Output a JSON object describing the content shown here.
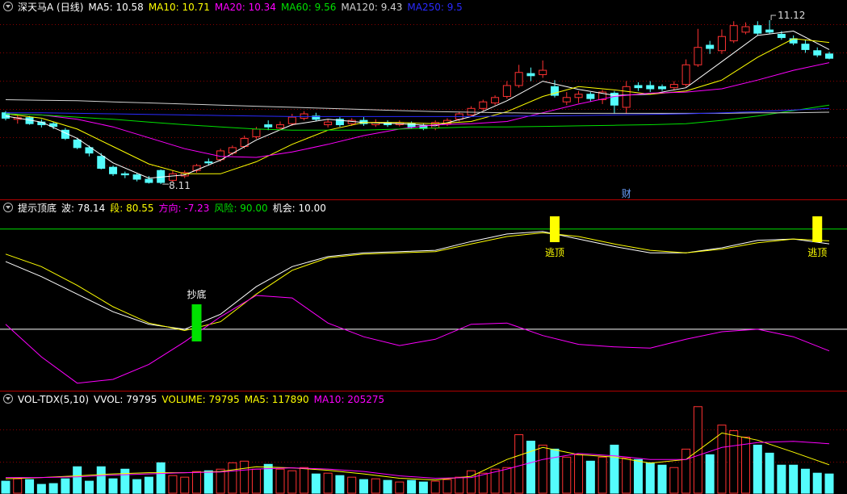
{
  "chart_data": [
    {
      "type": "candlestick",
      "title": "深天马A (日线)",
      "ylim": [
        7.83,
        11.49
      ],
      "up_color": "#ff3232",
      "down_color": "#54fcfc",
      "open": [
        9.42,
        9.3,
        9.33,
        9.25,
        9.22,
        9.1,
        8.92,
        8.78,
        8.62,
        8.42,
        8.3,
        8.28,
        8.2,
        8.36,
        8.18,
        8.26,
        8.36,
        8.52,
        8.56,
        8.68,
        8.8,
        8.98,
        9.2,
        9.14,
        9.22,
        9.32,
        9.36,
        9.2,
        9.3,
        9.22,
        9.28,
        9.2,
        9.24,
        9.2,
        9.22,
        9.18,
        9.14,
        9.22,
        9.3,
        9.38,
        9.5,
        9.6,
        9.72,
        9.92,
        10.14,
        10.12,
        9.9,
        9.62,
        9.7,
        9.76,
        9.66,
        9.78,
        9.52,
        9.92,
        9.92,
        9.9,
        9.88,
        9.94,
        10.3,
        10.66,
        10.56,
        10.74,
        10.9,
        11.02,
        10.94,
        10.86,
        10.78,
        10.68,
        10.56,
        10.5
      ],
      "high": [
        9.45,
        9.38,
        9.36,
        9.3,
        9.26,
        9.14,
        8.96,
        8.82,
        8.68,
        8.45,
        8.34,
        8.31,
        8.26,
        8.38,
        8.36,
        8.36,
        8.48,
        8.58,
        8.76,
        8.82,
        9.0,
        9.16,
        9.28,
        9.26,
        9.4,
        9.45,
        9.42,
        9.3,
        9.34,
        9.32,
        9.34,
        9.3,
        9.28,
        9.28,
        9.26,
        9.22,
        9.28,
        9.32,
        9.44,
        9.54,
        9.66,
        9.74,
        10.0,
        10.3,
        10.25,
        10.38,
        10.02,
        9.8,
        9.82,
        9.8,
        9.84,
        9.82,
        10.0,
        9.98,
        10.0,
        9.94,
        10.0,
        10.4,
        10.96,
        10.74,
        10.95,
        11.1,
        11.08,
        11.1,
        11.12,
        10.92,
        10.84,
        10.76,
        10.62,
        10.54
      ],
      "low": [
        9.28,
        9.22,
        9.2,
        9.15,
        9.12,
        8.92,
        8.75,
        8.62,
        8.38,
        8.26,
        8.22,
        8.16,
        8.12,
        8.11,
        8.14,
        8.22,
        8.32,
        8.45,
        8.52,
        8.64,
        8.76,
        8.94,
        9.1,
        9.1,
        9.18,
        9.28,
        9.26,
        9.15,
        9.16,
        9.18,
        9.18,
        9.16,
        9.16,
        9.17,
        9.12,
        9.1,
        9.1,
        9.18,
        9.26,
        9.34,
        9.46,
        9.56,
        9.68,
        9.88,
        10.0,
        10.06,
        9.7,
        9.56,
        9.6,
        9.62,
        9.58,
        9.4,
        9.4,
        9.82,
        9.8,
        9.82,
        9.84,
        9.9,
        10.26,
        10.5,
        10.5,
        10.7,
        10.86,
        10.84,
        10.86,
        10.76,
        10.66,
        10.52,
        10.44,
        10.4
      ],
      "close": [
        9.32,
        9.33,
        9.22,
        9.2,
        9.17,
        8.95,
        8.78,
        8.68,
        8.4,
        8.3,
        8.28,
        8.2,
        8.14,
        8.14,
        8.3,
        8.32,
        8.45,
        8.5,
        8.72,
        8.78,
        8.95,
        9.12,
        9.16,
        9.2,
        9.34,
        9.4,
        9.3,
        9.25,
        9.2,
        9.28,
        9.22,
        9.24,
        9.2,
        9.24,
        9.16,
        9.13,
        9.24,
        9.28,
        9.4,
        9.5,
        9.62,
        9.7,
        9.92,
        10.16,
        10.1,
        10.2,
        9.74,
        9.7,
        9.76,
        9.68,
        9.8,
        9.56,
        9.9,
        9.88,
        9.86,
        9.86,
        9.94,
        10.3,
        10.62,
        10.6,
        10.82,
        11.02,
        11.0,
        10.88,
        10.9,
        10.8,
        10.7,
        10.58,
        10.48,
        10.42
      ],
      "line_index": [
        0,
        3,
        6,
        9,
        12,
        15,
        18,
        21,
        24,
        27,
        30,
        33,
        36,
        39,
        42,
        45,
        48,
        51,
        54,
        57,
        60,
        63,
        66,
        69
      ],
      "series": [
        {
          "name": "MA5",
          "color": "#ffffff",
          "values": [
            9.36,
            9.25,
            8.95,
            8.5,
            8.22,
            8.28,
            8.55,
            8.92,
            9.2,
            9.3,
            9.24,
            9.22,
            9.18,
            9.35,
            9.64,
            10.0,
            9.85,
            9.74,
            9.76,
            9.88,
            10.36,
            10.84,
            10.92,
            10.58
          ]
        },
        {
          "name": "MA10",
          "color": "#ffff00",
          "values": [
            9.4,
            9.32,
            9.12,
            8.8,
            8.48,
            8.3,
            8.3,
            8.52,
            8.84,
            9.1,
            9.24,
            9.24,
            9.22,
            9.26,
            9.44,
            9.72,
            9.9,
            9.84,
            9.76,
            9.82,
            10.02,
            10.44,
            10.78,
            10.71
          ]
        },
        {
          "name": "MA20",
          "color": "#ff00ff",
          "values": [
            9.4,
            9.38,
            9.3,
            9.16,
            8.96,
            8.76,
            8.62,
            8.6,
            8.7,
            8.84,
            9.0,
            9.12,
            9.2,
            9.22,
            9.26,
            9.42,
            9.58,
            9.72,
            9.78,
            9.8,
            9.86,
            10.02,
            10.2,
            10.34
          ]
        },
        {
          "name": "MA60",
          "color": "#00e000",
          "values": [
            9.4,
            9.38,
            9.34,
            9.3,
            9.25,
            9.2,
            9.16,
            9.12,
            9.1,
            9.1,
            9.1,
            9.12,
            9.14,
            9.16,
            9.16,
            9.17,
            9.18,
            9.19,
            9.2,
            9.22,
            9.28,
            9.36,
            9.46,
            9.56
          ]
        },
        {
          "name": "MA120",
          "color": "#d0d0d0",
          "values": [
            9.66,
            9.65,
            9.64,
            9.62,
            9.6,
            9.58,
            9.56,
            9.54,
            9.52,
            9.5,
            9.48,
            9.46,
            9.44,
            9.43,
            9.42,
            9.41,
            9.41,
            9.41,
            9.41,
            9.41,
            9.41,
            9.42,
            9.42,
            9.43
          ]
        },
        {
          "name": "MA250",
          "color": "#2a2aff",
          "values": [
            9.42,
            9.42,
            9.41,
            9.4,
            9.39,
            9.38,
            9.37,
            9.36,
            9.35,
            9.35,
            9.35,
            9.35,
            9.35,
            9.35,
            9.36,
            9.36,
            9.37,
            9.38,
            9.39,
            9.4,
            9.42,
            9.44,
            9.47,
            9.5
          ]
        }
      ],
      "low_mark": 8.11,
      "high_mark": 11.12,
      "events": [
        {
          "label": "财",
          "index": 52
        }
      ]
    },
    {
      "type": "line",
      "title": "提示顶底",
      "ylim": [
        -39,
        113
      ],
      "line_index": [
        0,
        3,
        6,
        9,
        12,
        15,
        18,
        21,
        24,
        27,
        30,
        33,
        36,
        39,
        42,
        45,
        48,
        51,
        54,
        57,
        60,
        63,
        66,
        69
      ],
      "series": [
        {
          "name": "波",
          "color": "#ffffff",
          "values": [
            64,
            52,
            38,
            24,
            14,
            10,
            22,
            44,
            60,
            68,
            71,
            72,
            73,
            80,
            86,
            88,
            82,
            76,
            71,
            71,
            75,
            81,
            82,
            78.14
          ]
        },
        {
          "name": "段",
          "color": "#ffff00",
          "values": [
            70,
            60,
            45,
            28,
            15,
            9,
            16,
            38,
            57,
            67,
            70,
            71,
            72,
            78,
            84,
            87,
            84,
            78,
            73,
            71,
            74,
            79,
            82,
            80.55
          ]
        },
        {
          "name": "方向",
          "color": "#ff00ff",
          "values": [
            14,
            -12,
            -33,
            -30,
            -18,
            0,
            20,
            37,
            35,
            15,
            4,
            -3,
            2,
            14,
            15,
            5,
            -2,
            -4,
            -5,
            2,
            8,
            10,
            4,
            -7.23
          ]
        }
      ],
      "levels": [
        {
          "name": "风险",
          "color": "#00e000",
          "value": {
            "value": 90,
            "label": "90.00"
          }
        },
        {
          "name": "机会",
          "color": "#ffffff",
          "value": {
            "value": 10,
            "label": "10.00"
          }
        }
      ],
      "signals": [
        {
          "label": "抄底",
          "index": 16,
          "color": "#00e000"
        },
        {
          "label": "逃顶",
          "index": 46,
          "color": "#ffff00"
        },
        {
          "label": "逃顶",
          "index": 68,
          "color": "#ffff00"
        }
      ]
    },
    {
      "type": "bar",
      "title": "VOL-TDX(5,10)",
      "ylim": [
        0,
        422000
      ],
      "values": [
        49900,
        59800,
        56500,
        36600,
        39900,
        59800,
        109700,
        49900,
        109700,
        59800,
        99700,
        56500,
        66500,
        126300,
        73100,
        66500,
        89800,
        93100,
        99700,
        126300,
        133000,
        99700,
        119700,
        99700,
        93100,
        106400,
        79800,
        83100,
        73100,
        66500,
        56500,
        59800,
        53200,
        46500,
        53200,
        46500,
        49900,
        56500,
        66500,
        93100,
        83100,
        99700,
        106400,
        242700,
        216100,
        199500,
        182900,
        149600,
        159600,
        133000,
        149600,
        199500,
        146300,
        139600,
        126300,
        116400,
        106400,
        182900,
        359100,
        159600,
        282600,
        259300,
        232700,
        199500,
        166200,
        116400,
        116400,
        99700,
        83100,
        79795
      ],
      "readouts": [
        {
          "name": "VVOL",
          "color": "#ffffff"
        },
        {
          "name": "VOLUME",
          "color": "#ffff00"
        }
      ],
      "line_index": [
        0,
        3,
        6,
        9,
        12,
        15,
        18,
        21,
        24,
        27,
        30,
        33,
        36,
        39,
        42,
        45,
        48,
        51,
        54,
        57,
        60,
        63,
        66,
        69
      ],
      "series": [
        {
          "name": "MA5",
          "color": "#ffff00",
          "values": [
            60000,
            65000,
            72000,
            80000,
            85000,
            85000,
            90000,
            110000,
            105000,
            95000,
            80000,
            62000,
            55000,
            70000,
            140000,
            190000,
            160000,
            150000,
            125000,
            140000,
            250000,
            220000,
            170000,
            117890
          ]
        },
        {
          "name": "MA10",
          "color": "#ff00ff",
          "values": [
            65000,
            65000,
            68000,
            75000,
            80000,
            85000,
            88000,
            100000,
            105000,
            100000,
            90000,
            72000,
            62000,
            65000,
            100000,
            140000,
            165000,
            155000,
            140000,
            140000,
            190000,
            210000,
            215000,
            205275
          ]
        }
      ]
    }
  ]
}
